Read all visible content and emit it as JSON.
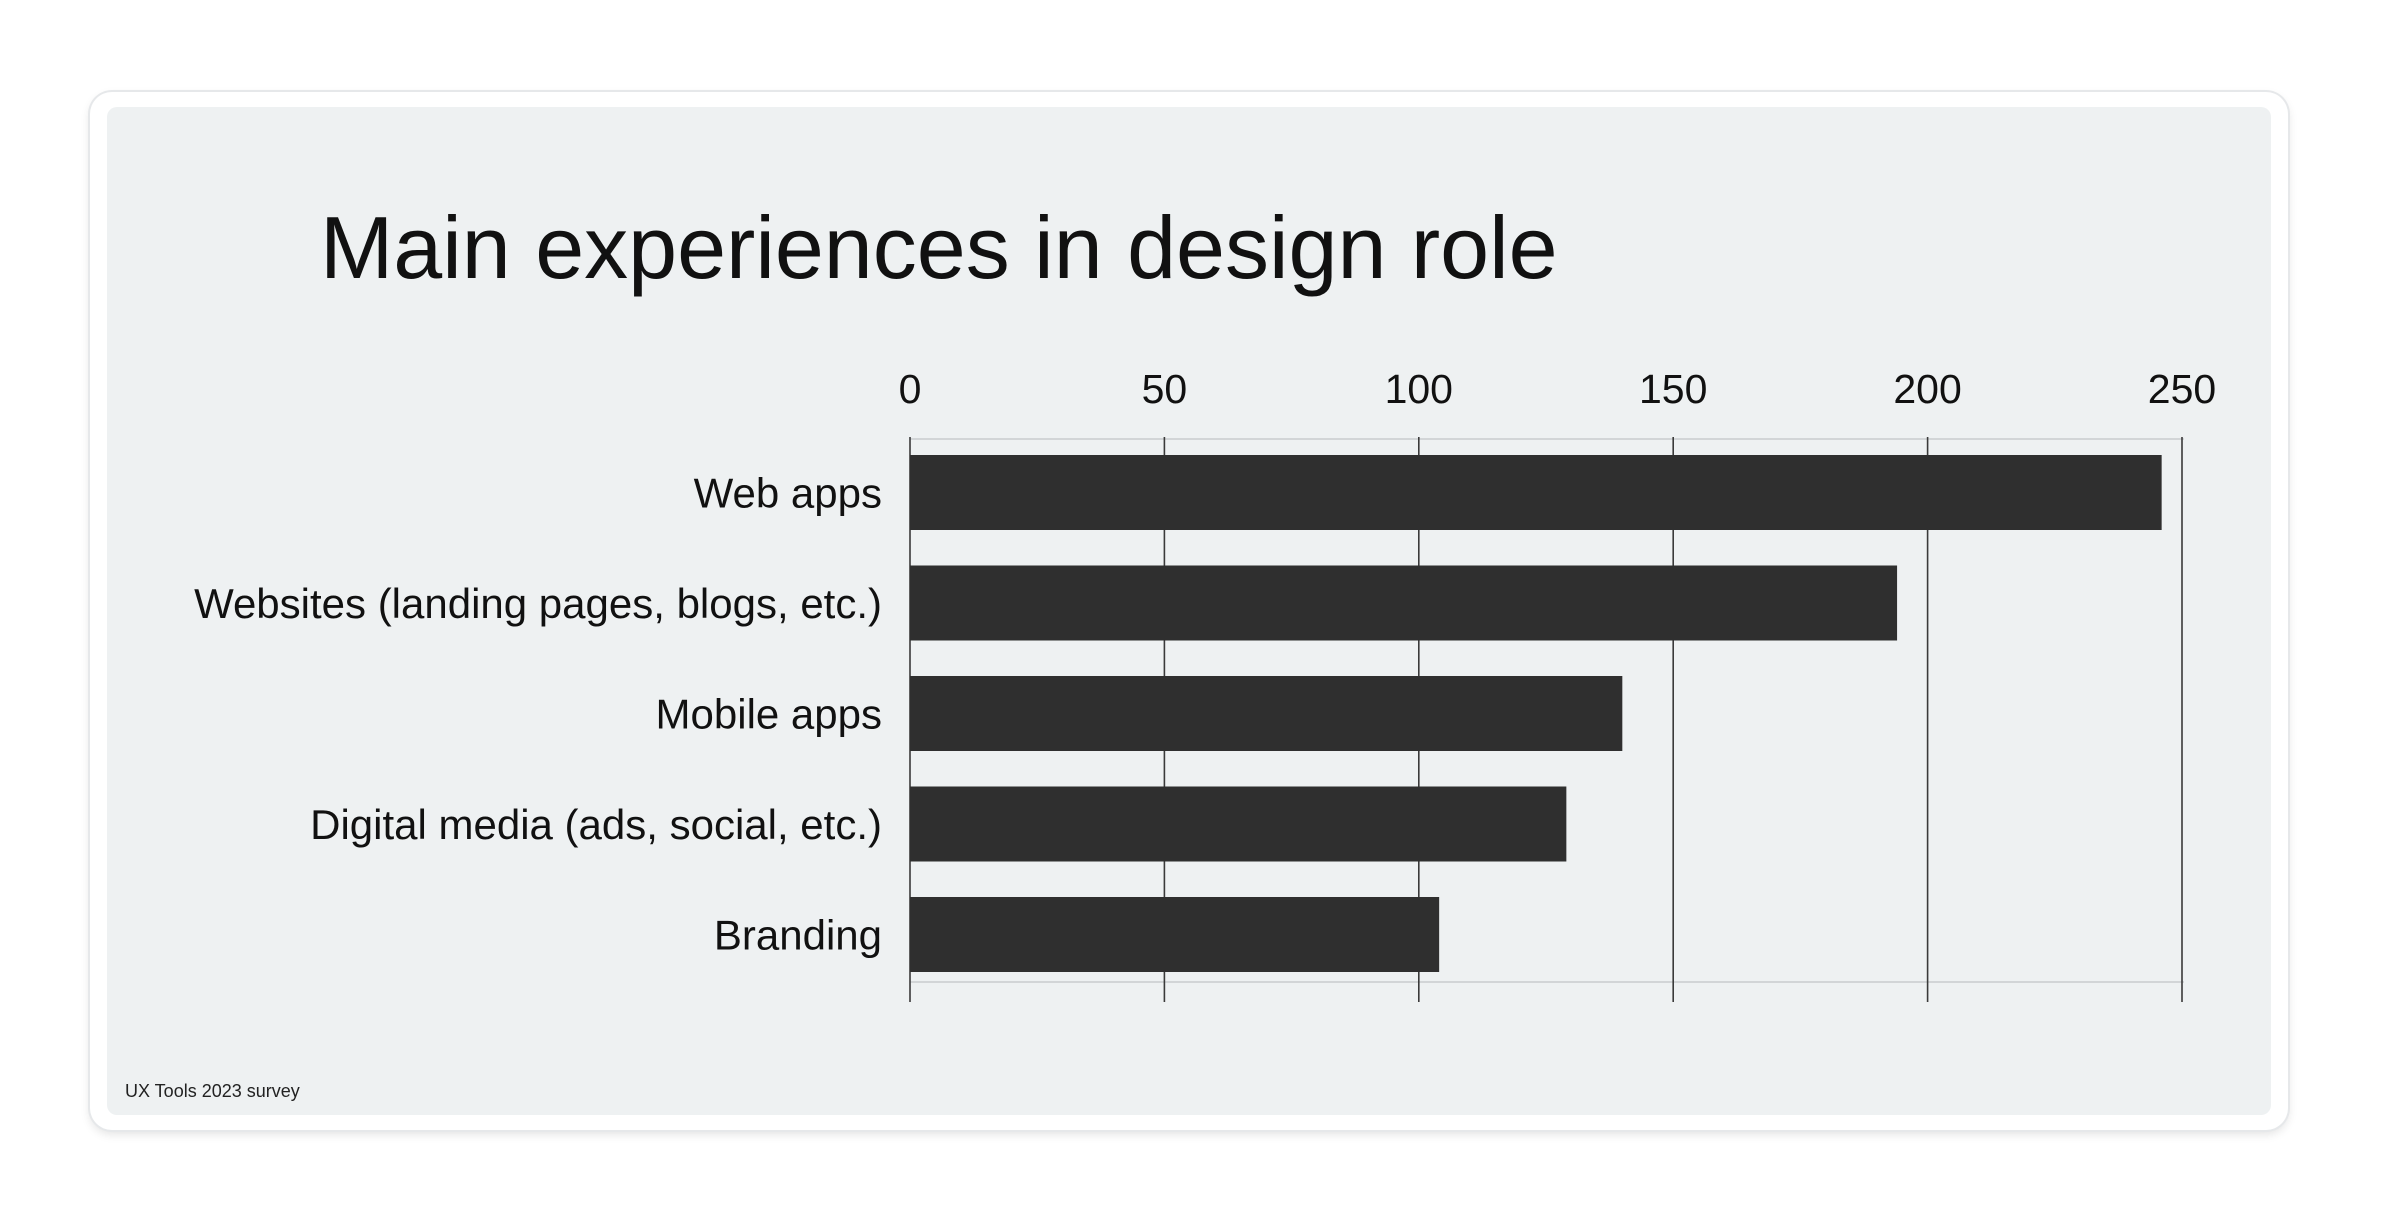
{
  "chart_data": {
    "type": "bar",
    "orientation": "horizontal",
    "title": "Main experiences in design role",
    "categories": [
      "Web apps",
      "Websites (landing pages, blogs, etc.)",
      "Mobile apps",
      "Digital media (ads, social, etc.)",
      "Branding"
    ],
    "values": [
      246,
      194,
      140,
      129,
      104
    ],
    "x_ticks": [
      0,
      50,
      100,
      150,
      200,
      250
    ],
    "xlim": [
      0,
      250
    ],
    "x_axis_position": "top",
    "grid": true,
    "bar_color": "#2f2f2f",
    "source": "UX Tools 2023 survey"
  }
}
